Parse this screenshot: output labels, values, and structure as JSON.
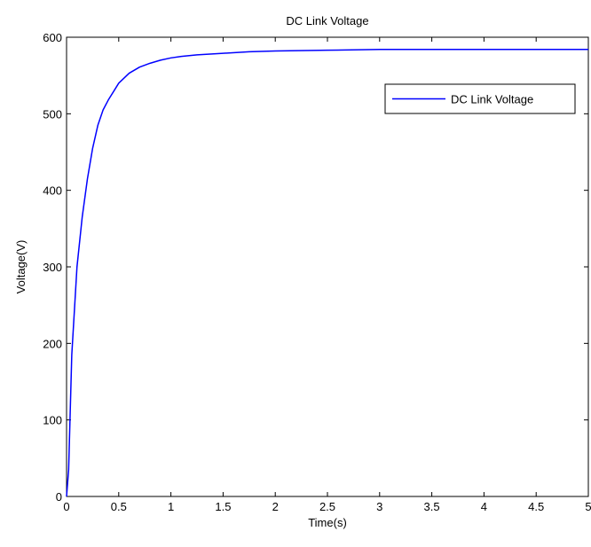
{
  "chart_data": {
    "type": "line",
    "title": "DC Link Voltage",
    "xlabel": "Time(s)",
    "ylabel": "Voltage(V)",
    "xlim": [
      0,
      5
    ],
    "ylim": [
      0,
      600
    ],
    "xticks": [
      0,
      0.5,
      1,
      1.5,
      2,
      2.5,
      3,
      3.5,
      4,
      4.5,
      5
    ],
    "yticks": [
      0,
      100,
      200,
      300,
      400,
      500,
      600
    ],
    "xtick_labels": [
      "0",
      "0.5",
      "1",
      "1.5",
      "2",
      "2.5",
      "3",
      "3.5",
      "4",
      "4.5",
      "5"
    ],
    "ytick_labels": [
      "0",
      "100",
      "200",
      "300",
      "400",
      "500",
      "600"
    ],
    "grid": false,
    "legend_position": "top-right",
    "series": [
      {
        "name": "DC Link Voltage",
        "color": "#0000ff",
        "x": [
          0,
          0.02,
          0.05,
          0.1,
          0.15,
          0.2,
          0.25,
          0.3,
          0.35,
          0.4,
          0.5,
          0.6,
          0.7,
          0.8,
          0.9,
          1.0,
          1.1,
          1.25,
          1.5,
          1.75,
          2.0,
          2.5,
          3.0,
          3.5,
          4.0,
          4.5,
          5.0
        ],
        "y": [
          0,
          35,
          185,
          300,
          365,
          415,
          455,
          485,
          505,
          518,
          540,
          553,
          561,
          566,
          570,
          573,
          575,
          577,
          579,
          581,
          582,
          583,
          584,
          584,
          584,
          584,
          584
        ]
      }
    ]
  }
}
